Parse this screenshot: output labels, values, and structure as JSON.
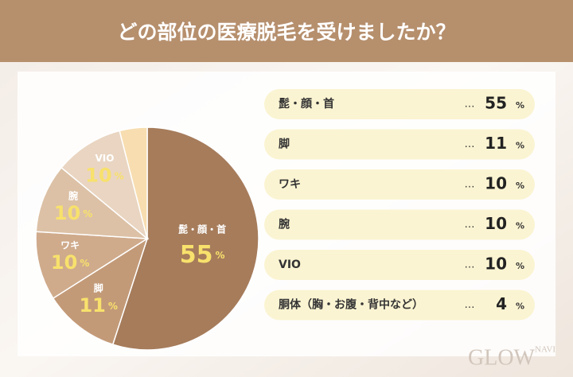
{
  "chart_data": {
    "type": "pie",
    "title": "どの部位の医療脱毛を受けましたか？",
    "categories": [
      "髭・顔・首",
      "脚",
      "ワキ",
      "腕",
      "VIO",
      "胴体（胸・お腹・背中など）"
    ],
    "values": [
      55,
      11,
      10,
      10,
      10,
      4
    ],
    "colors": [
      "#a67c5b",
      "#c39a78",
      "#cfab8c",
      "#dcc1a6",
      "#e9d5c1",
      "#f7ddb0"
    ],
    "unit": "%",
    "separator": "…"
  },
  "brand": {
    "name": "GLOW",
    "sub": "NAVI"
  }
}
